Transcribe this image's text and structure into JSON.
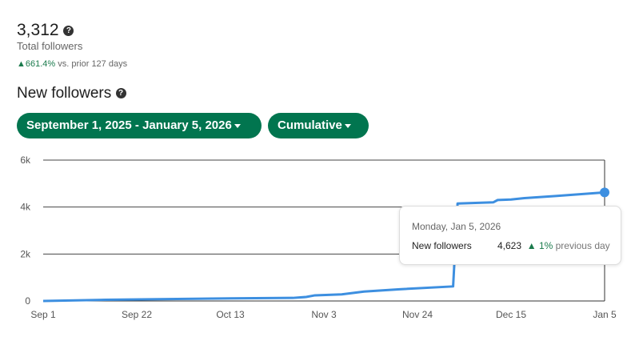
{
  "summary": {
    "total": "3,312",
    "total_label": "Total followers",
    "delta_arrow": "▲",
    "delta": "661.4%",
    "delta_suffix": "vs. prior 127 days",
    "help_icon": "?"
  },
  "section": {
    "title": "New followers",
    "help_icon": "?"
  },
  "filters": {
    "date_range": "September 1, 2025 - January 5, 2026",
    "mode": "Cumulative"
  },
  "colors": {
    "accent": "#01754f",
    "line": "#3d8fe0",
    "positive": "#1a7a4c"
  },
  "tooltip": {
    "date": "Monday, Jan 5, 2026",
    "label": "New followers",
    "value": "4,623",
    "arrow": "▲",
    "change": "1%",
    "change_suffix": "previous day"
  },
  "chart_data": {
    "type": "line",
    "title": "",
    "xlabel": "",
    "ylabel": "",
    "x_range": [
      "2025-09-01",
      "2026-01-05"
    ],
    "ylim": [
      0,
      6000
    ],
    "y_ticks": [
      0,
      2000,
      4000,
      6000
    ],
    "y_tick_labels": [
      "0",
      "2k",
      "4k",
      "6k"
    ],
    "x_ticks": [
      "2025-09-01",
      "2025-09-22",
      "2025-10-13",
      "2025-11-03",
      "2025-11-24",
      "2025-12-15",
      "2026-01-05"
    ],
    "x_tick_labels": [
      "Sep 1",
      "Sep 22",
      "Oct 13",
      "Nov 3",
      "Nov 24",
      "Dec 15",
      "Jan 5"
    ],
    "grid": "horizontal",
    "series": [
      {
        "values": [
          [
            "2025-09-01",
            0
          ],
          [
            "2025-09-15",
            50
          ],
          [
            "2025-09-29",
            80
          ],
          [
            "2025-10-13",
            110
          ],
          [
            "2025-10-27",
            130
          ],
          [
            "2025-10-30",
            170
          ],
          [
            "2025-11-01",
            240
          ],
          [
            "2025-11-07",
            280
          ],
          [
            "2025-11-12",
            400
          ],
          [
            "2025-11-20",
            500
          ],
          [
            "2025-12-02",
            620
          ],
          [
            "2025-12-03",
            4150
          ],
          [
            "2025-12-11",
            4200
          ],
          [
            "2025-12-12",
            4300
          ],
          [
            "2025-12-15",
            4320
          ],
          [
            "2025-12-18",
            4380
          ],
          [
            "2025-12-25",
            4470
          ],
          [
            "2026-01-05",
            4623
          ]
        ]
      }
    ]
  }
}
